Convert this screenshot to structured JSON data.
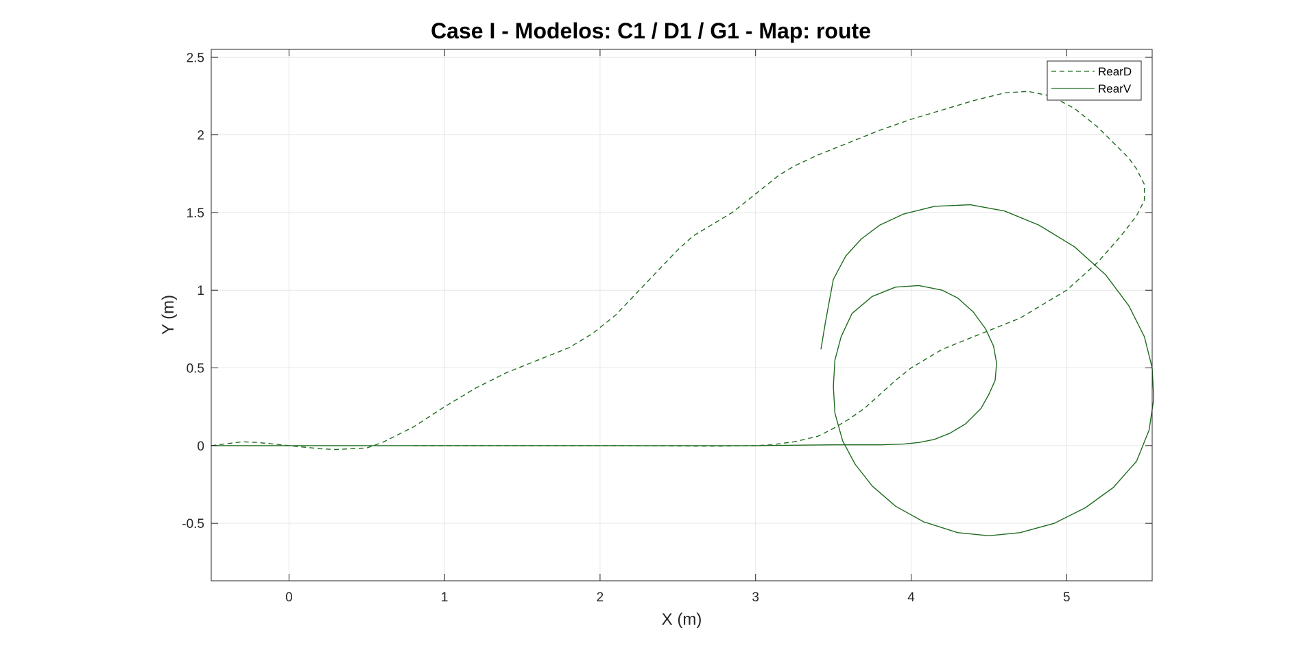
{
  "chart_data": {
    "type": "line",
    "title": "Case I - Modelos: C1 / D1 / G1 - Map: route",
    "xlabel": "X (m)",
    "ylabel": "Y (m)",
    "xlim": [
      -0.5,
      5.55
    ],
    "ylim": [
      -0.87,
      2.55
    ],
    "xticks": [
      0,
      1,
      2,
      3,
      4,
      5
    ],
    "yticks": [
      -0.5,
      0,
      0.5,
      1,
      1.5,
      2,
      2.5
    ],
    "xtick_labels": [
      "0",
      "1",
      "2",
      "3",
      "4",
      "5"
    ],
    "ytick_labels": [
      "-0.5",
      "0",
      "0.5",
      "1",
      "1.5",
      "2",
      "2.5"
    ],
    "grid": true,
    "legend_position": "top-right",
    "series": [
      {
        "name": "RearD",
        "style": "dashed",
        "color": "#1f6b1f",
        "x": [
          -0.5,
          -0.3,
          -0.2,
          0.0,
          0.2,
          0.3,
          0.5,
          0.6,
          0.8,
          1.0,
          1.2,
          1.4,
          1.6,
          1.8,
          1.95,
          2.1,
          2.3,
          2.5,
          2.6,
          2.75,
          2.85,
          2.95,
          3.05,
          3.15,
          3.25,
          3.4,
          3.6,
          3.8,
          4.0,
          4.2,
          4.4,
          4.6,
          4.75,
          4.9,
          5.05,
          5.2,
          5.3,
          5.4,
          5.45,
          5.5,
          5.5,
          5.45,
          5.35,
          5.2,
          5.0,
          4.8,
          4.7,
          4.55,
          4.4,
          4.2,
          4.0,
          3.9,
          3.8,
          3.7,
          3.6,
          3.5,
          3.4,
          3.25,
          3.1,
          3.0,
          2.8,
          2.6,
          2.4,
          2.2,
          2.0,
          1.8,
          1.6,
          1.4,
          1.2,
          1.0,
          0.8
        ],
        "y": [
          0.0,
          0.025,
          0.02,
          0.0,
          -0.02,
          -0.025,
          -0.015,
          0.02,
          0.12,
          0.25,
          0.37,
          0.47,
          0.55,
          0.63,
          0.72,
          0.84,
          1.05,
          1.26,
          1.35,
          1.44,
          1.5,
          1.58,
          1.66,
          1.74,
          1.8,
          1.87,
          1.95,
          2.03,
          2.1,
          2.16,
          2.22,
          2.27,
          2.28,
          2.25,
          2.17,
          2.05,
          1.95,
          1.85,
          1.78,
          1.68,
          1.58,
          1.48,
          1.35,
          1.18,
          1.0,
          0.88,
          0.82,
          0.76,
          0.7,
          0.62,
          0.5,
          0.42,
          0.33,
          0.24,
          0.17,
          0.11,
          0.06,
          0.025,
          0.005,
          0.0,
          -0.003,
          -0.003,
          -0.002,
          -0.001,
          0.0,
          0.0,
          0.0,
          0.0,
          0.0,
          0.0,
          0.0
        ]
      },
      {
        "name": "RearV",
        "style": "solid",
        "color": "#1f6b1f",
        "x": [
          -0.5,
          0.0,
          0.5,
          1.0,
          1.5,
          2.0,
          2.5,
          3.0,
          3.5,
          3.8,
          3.95,
          4.05,
          4.15,
          4.25,
          4.35,
          4.45,
          4.5,
          4.54,
          4.55,
          4.53,
          4.48,
          4.4,
          4.3,
          4.2,
          4.05,
          3.9,
          3.75,
          3.62,
          3.55,
          3.51,
          3.5,
          3.51,
          3.56,
          3.64,
          3.75,
          3.9,
          4.08,
          4.3,
          4.5,
          4.7,
          4.92,
          5.12,
          5.3,
          5.45,
          5.53,
          5.56,
          5.55,
          5.5,
          5.4,
          5.25,
          5.05,
          4.82,
          4.6,
          4.38,
          4.15,
          3.95,
          3.8,
          3.68,
          3.58,
          3.5,
          3.45,
          3.42
        ],
        "y": [
          0.0,
          0.0,
          0.0,
          0.0,
          0.0,
          0.0,
          0.0,
          0.0,
          0.005,
          0.005,
          0.01,
          0.02,
          0.04,
          0.08,
          0.14,
          0.24,
          0.33,
          0.42,
          0.53,
          0.64,
          0.75,
          0.86,
          0.95,
          1.0,
          1.03,
          1.02,
          0.96,
          0.85,
          0.7,
          0.55,
          0.38,
          0.21,
          0.03,
          -0.12,
          -0.26,
          -0.39,
          -0.49,
          -0.56,
          -0.58,
          -0.56,
          -0.5,
          -0.4,
          -0.27,
          -0.1,
          0.1,
          0.3,
          0.5,
          0.7,
          0.9,
          1.1,
          1.28,
          1.42,
          1.51,
          1.55,
          1.54,
          1.49,
          1.42,
          1.33,
          1.22,
          1.07,
          0.8,
          0.62
        ]
      }
    ]
  },
  "colors": {
    "series": "#1f6b1f",
    "grid": "#e6e6e6",
    "axes": "#262626"
  }
}
